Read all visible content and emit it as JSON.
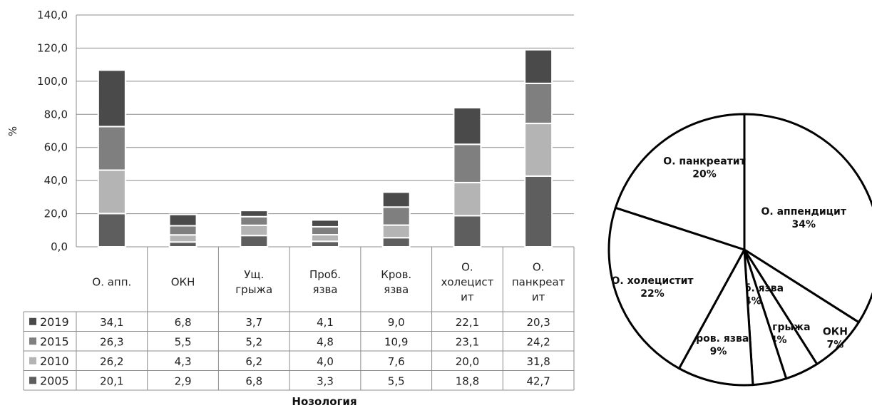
{
  "chart_data": [
    {
      "type": "bar",
      "stacked": true,
      "ylabel": "%",
      "xlabel": "Нозология",
      "ylim": [
        0,
        140
      ],
      "yticks": [
        "0,0",
        "20,0",
        "40,0",
        "60,0",
        "80,0",
        "100,0",
        "120,0",
        "140,0"
      ],
      "grid": true,
      "categories": [
        [
          "О. апп."
        ],
        [
          "ОКН"
        ],
        [
          "Ущ.",
          "грыжа"
        ],
        [
          "Проб.",
          "язва"
        ],
        [
          "Кров.",
          "язва"
        ],
        [
          "О.",
          "холецист",
          "ит"
        ],
        [
          "О.",
          "панкреат",
          "ит"
        ]
      ],
      "series": [
        {
          "name": "2019",
          "color": "#4a4a4a",
          "values": [
            34.1,
            6.8,
            3.7,
            4.1,
            9.0,
            22.1,
            20.3
          ],
          "labels": [
            "34,1",
            "6,8",
            "3,7",
            "4,1",
            "9,0",
            "22,1",
            "20,3"
          ]
        },
        {
          "name": "2015",
          "color": "#7f7f7f",
          "values": [
            26.3,
            5.5,
            5.2,
            4.8,
            10.9,
            23.1,
            24.2
          ],
          "labels": [
            "26,3",
            "5,5",
            "5,2",
            "4,8",
            "10,9",
            "23,1",
            "24,2"
          ]
        },
        {
          "name": "2010",
          "color": "#b4b4b4",
          "values": [
            26.2,
            4.3,
            6.2,
            4.0,
            7.6,
            20.0,
            31.8
          ],
          "labels": [
            "26,2",
            "4,3",
            "6,2",
            "4,0",
            "7,6",
            "20,0",
            "31,8"
          ]
        },
        {
          "name": "2005",
          "color": "#5e5e5e",
          "values": [
            20.1,
            2.9,
            6.8,
            3.3,
            5.5,
            18.8,
            42.7
          ],
          "labels": [
            "20,1",
            "2,9",
            "6,8",
            "3,3",
            "5,5",
            "18,8",
            "42,7"
          ]
        }
      ]
    },
    {
      "type": "pie",
      "slices": [
        {
          "label": "О. аппендицит",
          "pct_label": "34%",
          "value": 34
        },
        {
          "label": "ОКН",
          "pct_label": "7%",
          "value": 7
        },
        {
          "label": "Ущ. грыжа",
          "pct_label": "4%",
          "value": 4
        },
        {
          "label": "Проб. язва",
          "pct_label": "4%",
          "value": 4
        },
        {
          "label": "Кров. язва",
          "pct_label": "9%",
          "value": 9
        },
        {
          "label": "О. холецистит",
          "pct_label": "22%",
          "value": 22
        },
        {
          "label": "О.  панкреатит",
          "pct_label": "20%",
          "value": 20
        }
      ],
      "fill": "#ffffff",
      "stroke": "#000000"
    }
  ]
}
